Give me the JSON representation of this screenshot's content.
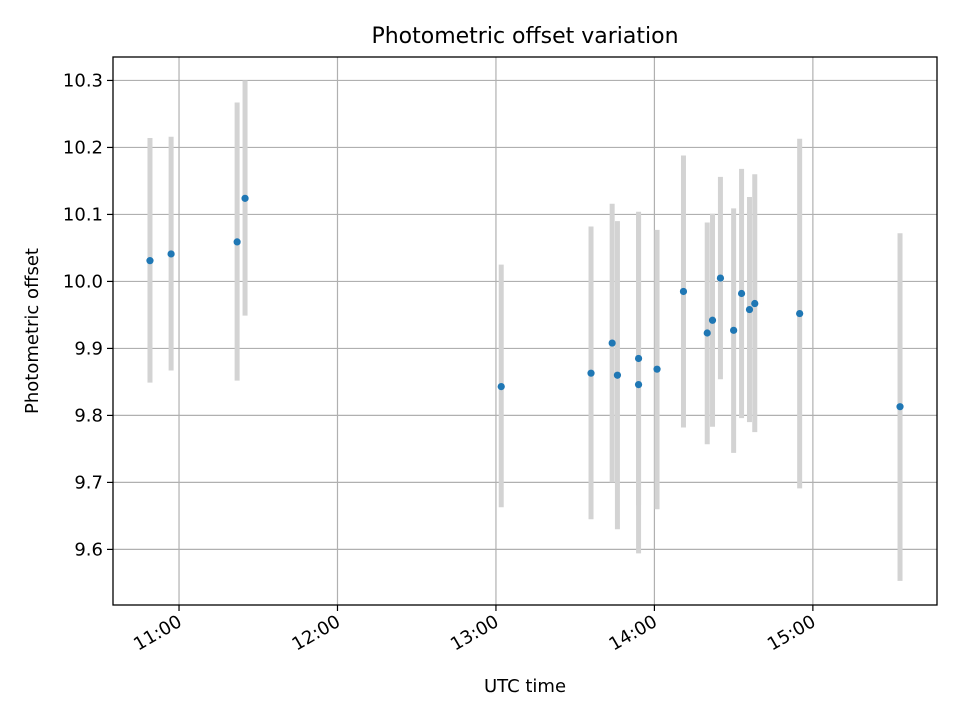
{
  "chart_data": {
    "type": "scatter",
    "title": "Photometric offset variation",
    "xlabel": "UTC time",
    "ylabel": "Photometric offset",
    "x_type": "time",
    "xlim": [
      "10:35",
      "15:47"
    ],
    "ylim": [
      9.517,
      10.335
    ],
    "grid": true,
    "x_ticks": [
      "11:00",
      "12:00",
      "13:00",
      "14:00",
      "15:00"
    ],
    "y_ticks": [
      9.6,
      9.7,
      9.8,
      9.9,
      10.0,
      10.1,
      10.2,
      10.3
    ],
    "y_tick_labels": [
      "9.6",
      "9.7",
      "9.8",
      "9.9",
      "10.0",
      "10.1",
      "10.2",
      "10.3"
    ],
    "colors": {
      "marker": "#1f77b4",
      "errorbar": "#d3d3d3",
      "grid": "#b0b0b0"
    },
    "series": [
      {
        "points": [
          {
            "x": "10:49",
            "y": 10.031,
            "ylow": 9.849,
            "yhigh": 10.214
          },
          {
            "x": "10:57",
            "y": 10.041,
            "ylow": 9.867,
            "yhigh": 10.216
          },
          {
            "x": "11:22",
            "y": 10.059,
            "ylow": 9.852,
            "yhigh": 10.267
          },
          {
            "x": "11:25",
            "y": 10.124,
            "ylow": 9.949,
            "yhigh": 10.3
          },
          {
            "x": "13:02",
            "y": 9.843,
            "ylow": 9.663,
            "yhigh": 10.025
          },
          {
            "x": "13:36",
            "y": 9.863,
            "ylow": 9.645,
            "yhigh": 10.082
          },
          {
            "x": "13:44",
            "y": 9.908,
            "ylow": 9.7,
            "yhigh": 10.116
          },
          {
            "x": "13:46",
            "y": 9.86,
            "ylow": 9.63,
            "yhigh": 10.09
          },
          {
            "x": "13:54",
            "y": 9.846,
            "ylow": 9.594,
            "yhigh": 10.101
          },
          {
            "x": "13:54",
            "y": 9.885,
            "ylow": 9.666,
            "yhigh": 10.104
          },
          {
            "x": "14:01",
            "y": 9.869,
            "ylow": 9.66,
            "yhigh": 10.077
          },
          {
            "x": "14:11",
            "y": 9.985,
            "ylow": 9.782,
            "yhigh": 10.188
          },
          {
            "x": "14:20",
            "y": 9.923,
            "ylow": 9.757,
            "yhigh": 10.088
          },
          {
            "x": "14:22",
            "y": 9.942,
            "ylow": 9.783,
            "yhigh": 10.101
          },
          {
            "x": "14:25",
            "y": 10.005,
            "ylow": 9.854,
            "yhigh": 10.156
          },
          {
            "x": "14:30",
            "y": 9.927,
            "ylow": 9.744,
            "yhigh": 10.109
          },
          {
            "x": "14:33",
            "y": 9.982,
            "ylow": 9.796,
            "yhigh": 10.168
          },
          {
            "x": "14:36",
            "y": 9.958,
            "ylow": 9.79,
            "yhigh": 10.126
          },
          {
            "x": "14:38",
            "y": 9.967,
            "ylow": 9.775,
            "yhigh": 10.16
          },
          {
            "x": "14:55",
            "y": 9.952,
            "ylow": 9.691,
            "yhigh": 10.213
          },
          {
            "x": "15:33",
            "y": 9.813,
            "ylow": 9.553,
            "yhigh": 10.072
          }
        ]
      }
    ]
  }
}
